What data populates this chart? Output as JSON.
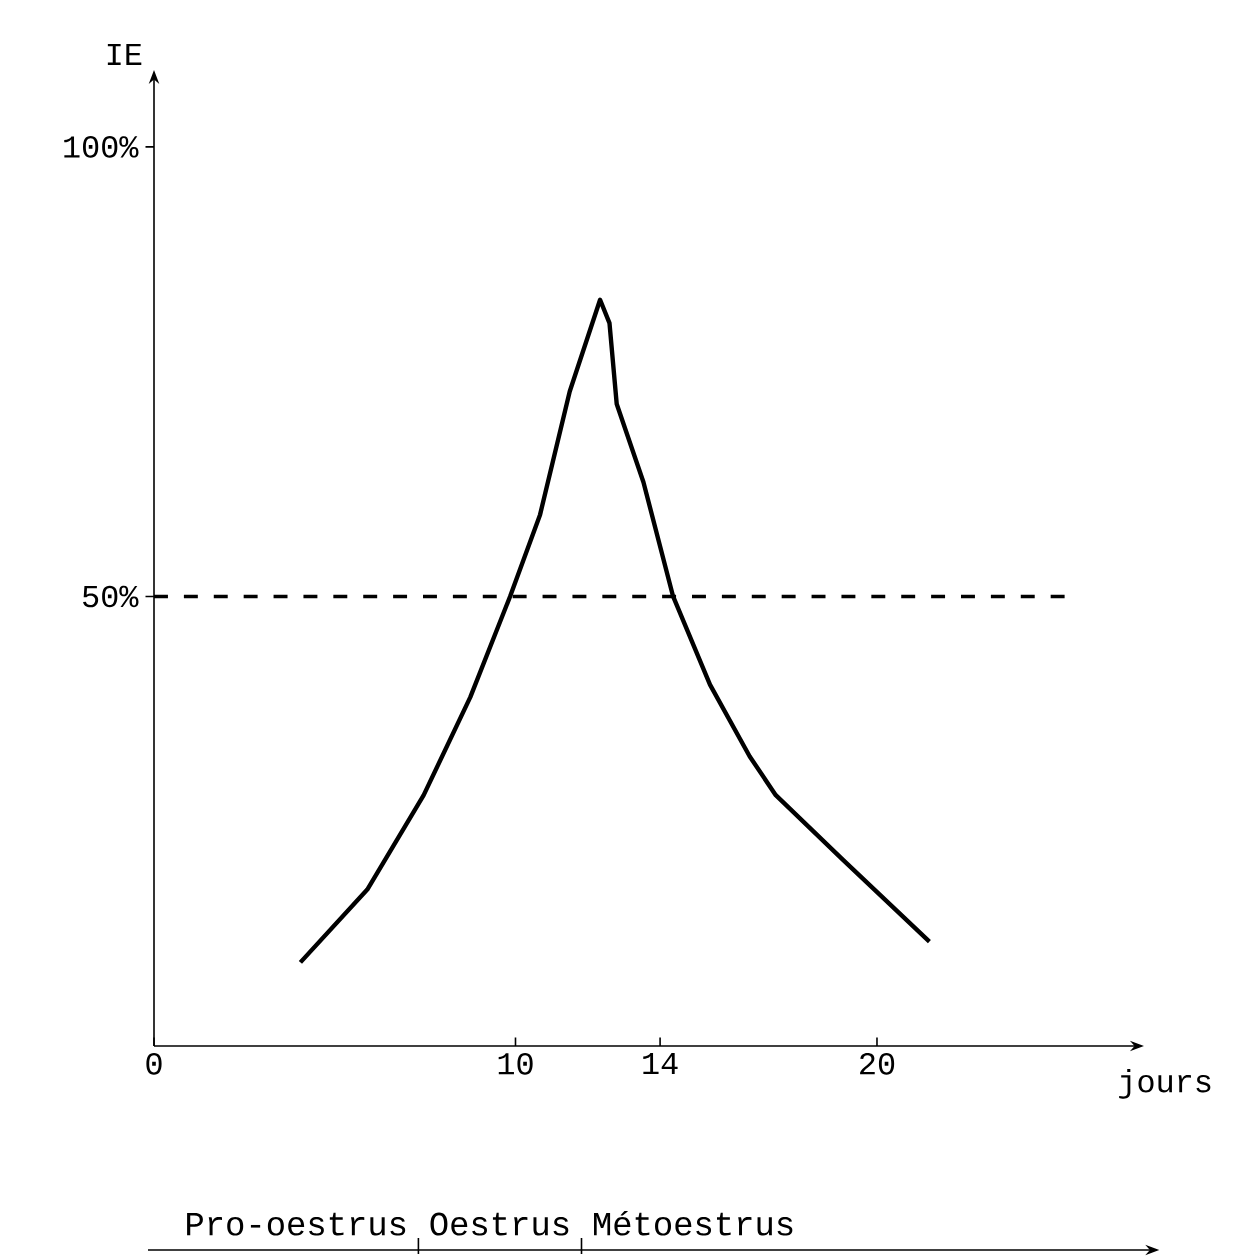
{
  "chart_data": {
    "type": "line",
    "xlabel": "jours",
    "ylabel": "IE",
    "xlim": [
      0,
      27
    ],
    "ylim": [
      0,
      107
    ],
    "xticks": [
      0,
      10,
      14,
      20
    ],
    "yticks": [
      {
        "value": 50,
        "label": "50%"
      },
      {
        "value": 100,
        "label": "100%"
      }
    ],
    "x": [
      4.05,
      5.9,
      7.46,
      8.75,
      9.85,
      10.68,
      11.5,
      12.34,
      12.6,
      12.8,
      13.54,
      14.36,
      15.38,
      16.48,
      17.2,
      19.06,
      21.45
    ],
    "series": [
      {
        "color": "#000000",
        "values": [
          9.3,
          17.4,
          27.9,
          38.8,
          50,
          59.1,
          72.8,
          83,
          80.4,
          71.4,
          62.7,
          50,
          40.2,
          32.2,
          27.9,
          20.7,
          11.6
        ]
      }
    ],
    "ref_lines": [
      {
        "axis": "y",
        "value": 50,
        "line_style": "dashed",
        "color": "#000000"
      }
    ],
    "annotations": [
      "Pro-oestrus",
      "Oestrus",
      "Métoestrus"
    ],
    "grid": false,
    "marker": "none",
    "line_style": "solid"
  }
}
